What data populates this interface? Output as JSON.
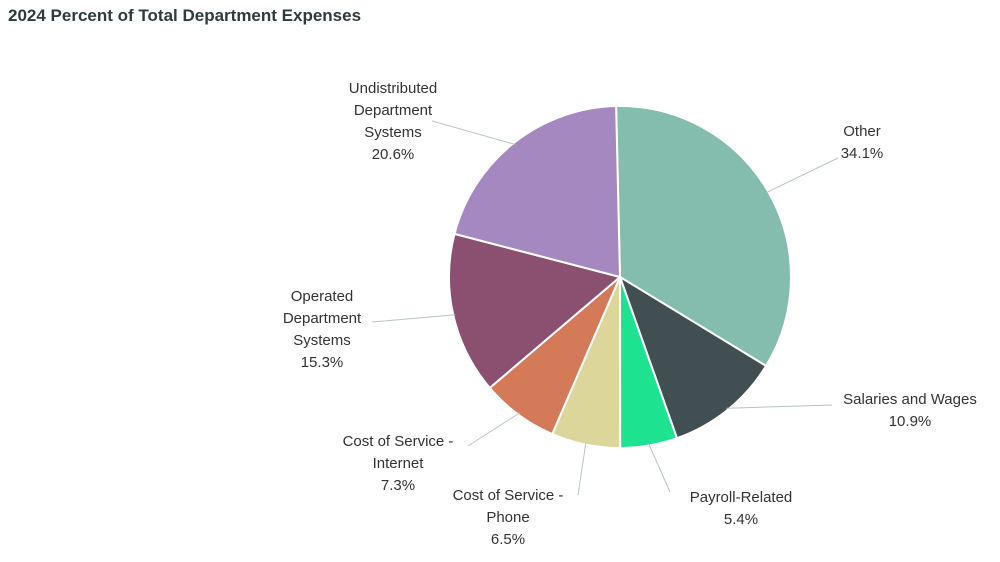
{
  "chart_data": {
    "type": "pie",
    "title": "2024 Percent of Total Department Expenses",
    "start": "top",
    "direction": "clockwise",
    "slices": [
      {
        "label": "Other",
        "value": 34.1,
        "display": "34.1%",
        "color": "#84bcae"
      },
      {
        "label": "Salaries and Wages",
        "value": 10.9,
        "display": "10.9%",
        "color": "#424f52"
      },
      {
        "label": "Payroll-Related",
        "value": 5.4,
        "display": "5.4%",
        "color": "#1de28f"
      },
      {
        "label": "Cost of Service - Phone",
        "value": 6.5,
        "display": "6.5%",
        "color": "#dcd69a"
      },
      {
        "label": "Cost of Service - Internet",
        "value": 7.3,
        "display": "7.3%",
        "color": "#d47a58"
      },
      {
        "label": "Operated Department Systems",
        "value": 15.3,
        "display": "15.3%",
        "color": "#8b4f70"
      },
      {
        "label": "Undistributed Department Systems",
        "value": 20.6,
        "display": "20.6%",
        "color": "#a488bf"
      }
    ]
  }
}
